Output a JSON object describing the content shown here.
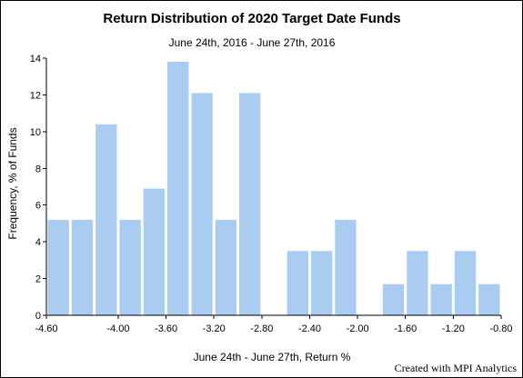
{
  "chart_data": {
    "type": "bar",
    "title": "Return Distribution of 2020 Target Date Funds",
    "subtitle": "June 24th, 2016 - June 27th, 2016",
    "xlabel": "June 24th - June 27th, Return %",
    "ylabel": "Frequency, % of Funds",
    "xlim": [
      -4.6,
      -0.8
    ],
    "ylim": [
      0,
      14
    ],
    "x_ticks": [
      "-4.60",
      "-4.00",
      "-3.60",
      "-3.20",
      "-2.80",
      "-2.40",
      "-2.00",
      "-1.60",
      "-1.20",
      "-0.80"
    ],
    "y_ticks": [
      "0",
      "2",
      "4",
      "6",
      "8",
      "10",
      "12",
      "14"
    ],
    "bin_starts": [
      -4.6,
      -4.4,
      -4.2,
      -4.0,
      -3.8,
      -3.6,
      -3.4,
      -3.2,
      -3.0,
      -2.8,
      -2.6,
      -2.4,
      -2.2,
      -2.0,
      -1.8,
      -1.6,
      -1.4,
      -1.2,
      -1.0
    ],
    "bin_width": 0.2,
    "values": [
      5.2,
      5.2,
      10.4,
      5.2,
      6.9,
      13.8,
      12.1,
      5.2,
      12.1,
      0,
      3.5,
      3.5,
      5.2,
      0,
      1.7,
      3.5,
      1.7,
      3.5,
      1.7
    ],
    "bar_color": "#aaccf0",
    "grid": false
  },
  "footer": {
    "credit": "Created with MPI Analytics"
  }
}
